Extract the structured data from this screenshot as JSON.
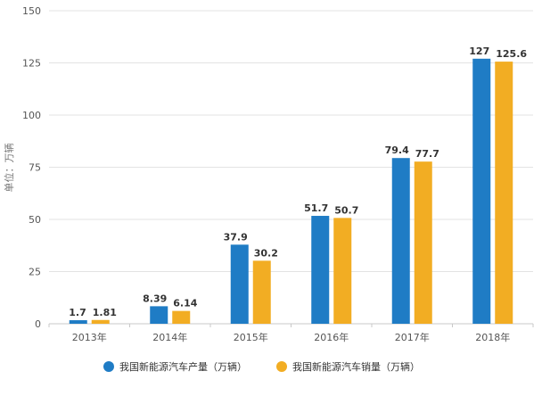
{
  "chart_data": {
    "type": "bar",
    "ylabel": "单位：万辆",
    "ylim": [
      0,
      150
    ],
    "yticks": [
      0,
      25,
      50,
      75,
      100,
      125,
      150
    ],
    "grid": true,
    "legend_position": "bottom",
    "categories": [
      "2013年",
      "2014年",
      "2015年",
      "2016年",
      "2017年",
      "2018年"
    ],
    "series": [
      {
        "name": "我国新能源汽车产量（万辆）",
        "color": "#1f7cc5",
        "values": [
          1.7,
          8.39,
          37.9,
          51.7,
          79.4,
          127
        ]
      },
      {
        "name": "我国新能源汽车销量（万辆）",
        "color": "#f2ad23",
        "values": [
          1.81,
          6.14,
          30.2,
          50.7,
          77.7,
          125.6
        ]
      }
    ]
  }
}
